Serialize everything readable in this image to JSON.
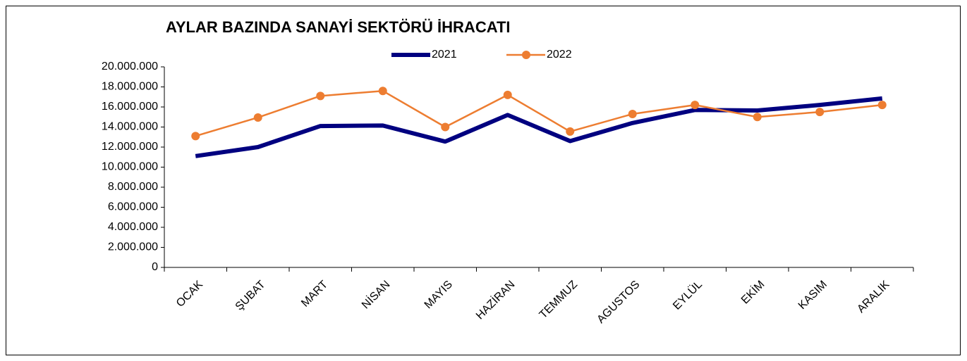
{
  "chart_data": {
    "type": "line",
    "title": "AYLAR BAZINDA SANAYİ SEKTÖRÜ İHRACATI",
    "categories": [
      "OCAK",
      "ŞUBAT",
      "MART",
      "NİSAN",
      "MAYIS",
      "HAZİRAN",
      "TEMMUZ",
      "AGUSTOS",
      "EYLÜL",
      "EKİM",
      "KASIM",
      "ARALIK"
    ],
    "series": [
      {
        "name": "2021",
        "color": "#000080",
        "values": [
          11100000,
          12000000,
          14100000,
          14150000,
          12550000,
          15200000,
          12600000,
          14400000,
          15700000,
          15650000,
          16200000,
          16850000
        ]
      },
      {
        "name": "2022",
        "color": "#ed7d31",
        "values": [
          13100000,
          14950000,
          17100000,
          17600000,
          14000000,
          17200000,
          13550000,
          15300000,
          16200000,
          15000000,
          15500000,
          16200000
        ]
      }
    ],
    "ylim": [
      0,
      20000000
    ],
    "yticks": [
      0,
      {
        "value": 2000000,
        "label": "2.000.000"
      },
      {
        "value": 4000000,
        "label": "4.000.000"
      },
      {
        "value": 6000000,
        "label": "6.000.000"
      },
      {
        "value": 8000000,
        "label": "8.000.000"
      },
      {
        "value": 10000000,
        "label": "10.000.000"
      },
      {
        "value": 12000000,
        "label": "12.000.000"
      },
      {
        "value": 14000000,
        "label": "14.000.000"
      },
      {
        "value": 16000000,
        "label": "16.000.000"
      },
      {
        "value": 18000000,
        "label": "18.000.000"
      },
      {
        "value": 20000000,
        "label": "20.000.000"
      }
    ],
    "grid": false,
    "legend": "top"
  }
}
